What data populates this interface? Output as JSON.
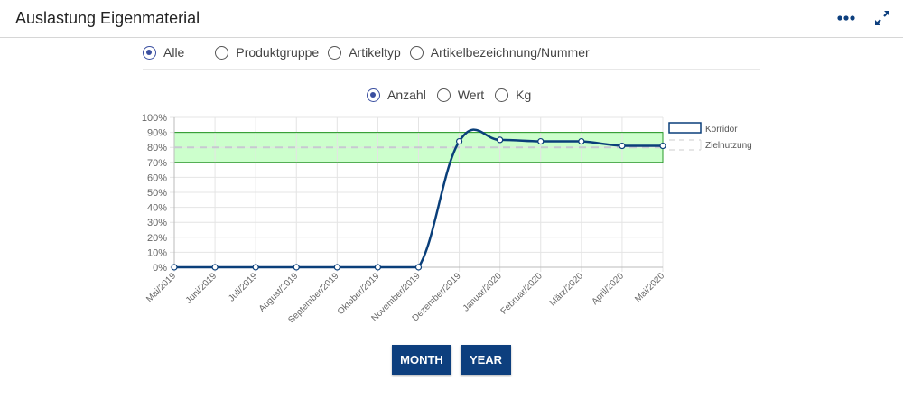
{
  "header": {
    "title": "Auslastung Eigenmaterial",
    "more_icon": "more-horizontal-icon",
    "expand_icon": "expand-arrows-icon"
  },
  "filters": {
    "group_options": [
      {
        "label": "Alle",
        "checked": true
      },
      {
        "label": "Produktgruppe",
        "checked": false
      },
      {
        "label": "Artikeltyp",
        "checked": false
      },
      {
        "label": "Artikelbezeichnung/Nummer",
        "checked": false
      }
    ],
    "measure_options": [
      {
        "label": "Anzahl",
        "checked": true
      },
      {
        "label": "Wert",
        "checked": false
      },
      {
        "label": "Kg",
        "checked": false
      }
    ]
  },
  "buttons": {
    "month_label": "MONTH",
    "year_label": "YEAR"
  },
  "colors": {
    "accent": "#0d3f7e",
    "line": "#0a3f7a",
    "corridor_fill": "#ccffcc",
    "corridor_border": "#2a9a2a",
    "target_line": "#c8c8d2",
    "radio_checked": "#3a4fa0"
  },
  "chart_data": {
    "type": "line",
    "categories": [
      "Mai/2019",
      "Juni/2019",
      "Juli/2019",
      "August/2019",
      "September/2019",
      "Oktober/2019",
      "November/2019",
      "Dezember/2019",
      "Januar/2020",
      "Februar/2020",
      "März/2020",
      "April/2020",
      "Mai/2020"
    ],
    "series": [
      {
        "name": "",
        "values": [
          0,
          0,
          0,
          0,
          0,
          0,
          0,
          84,
          85,
          84,
          84,
          81,
          81
        ]
      }
    ],
    "corridor": {
      "name": "Korridor",
      "from": 70,
      "to": 90
    },
    "target": {
      "name": "Zielnutzung",
      "value": 80
    },
    "ylim": [
      0,
      100
    ],
    "yticks": [
      "0%",
      "10%",
      "20%",
      "30%",
      "40%",
      "50%",
      "60%",
      "70%",
      "80%",
      "90%",
      "100%"
    ],
    "grid": true,
    "legend": "right"
  }
}
